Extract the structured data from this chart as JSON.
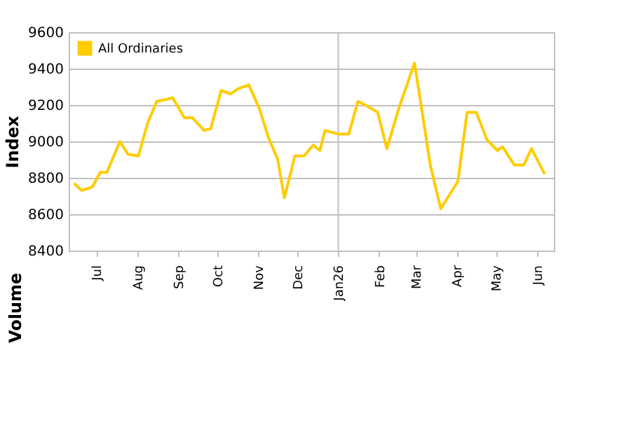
{
  "chart_data": {
    "type": "line",
    "ylabel": "Index",
    "x": [
      "2025-06-14",
      "2025-06-20",
      "2025-06-28",
      "2025-07-04",
      "2025-07-09",
      "2025-07-19",
      "2025-07-25",
      "2025-08-02",
      "2025-08-09",
      "2025-08-16",
      "2025-08-23",
      "2025-08-28",
      "2025-09-06",
      "2025-09-12",
      "2025-09-21",
      "2025-09-26",
      "2025-10-04",
      "2025-10-11",
      "2025-10-17",
      "2025-10-25",
      "2025-11-02",
      "2025-11-09",
      "2025-11-16",
      "2025-11-21",
      "2025-11-29",
      "2025-12-06",
      "2025-12-13",
      "2025-12-18",
      "2025-12-22",
      "2026-01-01",
      "2026-01-09",
      "2026-01-16",
      "2026-01-24",
      "2026-01-31",
      "2026-02-07",
      "2026-02-16",
      "2026-02-28",
      "2026-03-05",
      "2026-03-12",
      "2026-03-20",
      "2026-03-26",
      "2026-04-02",
      "2026-04-09",
      "2026-04-16",
      "2026-04-24",
      "2026-05-02",
      "2026-05-06",
      "2026-05-15",
      "2026-05-22",
      "2026-05-28",
      "2026-06-07"
    ],
    "series": [
      {
        "name": "All Ordinaries",
        "color": "#ffcc00",
        "values": [
          8770,
          8730,
          8750,
          8830,
          8830,
          9000,
          8930,
          8920,
          9100,
          9220,
          9230,
          9240,
          9130,
          9130,
          9060,
          9070,
          9280,
          9260,
          9290,
          9310,
          9180,
          9020,
          8900,
          8690,
          8920,
          8920,
          8980,
          8950,
          9060,
          9040,
          9040,
          9220,
          9190,
          9160,
          8960,
          9180,
          9430,
          9200,
          8870,
          8630,
          8700,
          8780,
          9160,
          9160,
          9010,
          8950,
          8970,
          8870,
          8870,
          8960,
          8820
        ]
      }
    ],
    "xlim": [
      "2025-06-10",
      "2026-06-14"
    ],
    "xticks": [
      {
        "value": "2025-07-01",
        "label": "Jul"
      },
      {
        "value": "2025-08-01",
        "label": "Aug"
      },
      {
        "value": "2025-09-01",
        "label": "Sep"
      },
      {
        "value": "2025-10-01",
        "label": "Oct"
      },
      {
        "value": "2025-11-01",
        "label": "Nov"
      },
      {
        "value": "2025-12-01",
        "label": "Dec"
      },
      {
        "value": "2026-01-01",
        "label": "Jan26"
      },
      {
        "value": "2026-02-01",
        "label": "Feb"
      },
      {
        "value": "2026-03-01",
        "label": "Mar"
      },
      {
        "value": "2026-04-01",
        "label": "Apr"
      },
      {
        "value": "2026-05-01",
        "label": "May"
      },
      {
        "value": "2026-06-01",
        "label": "Jun"
      }
    ],
    "ylim": [
      8400,
      9600
    ],
    "yticks": [
      8400,
      8600,
      8800,
      9000,
      9200,
      9400,
      9600
    ],
    "ref_lines": [
      {
        "axis": "x",
        "value": "2026-01-01",
        "color": "#c0c0c0"
      }
    ],
    "annotations": [
      "Volume"
    ],
    "grid": "y",
    "legend": "top left",
    "marker": "none",
    "line_style": "solid"
  }
}
